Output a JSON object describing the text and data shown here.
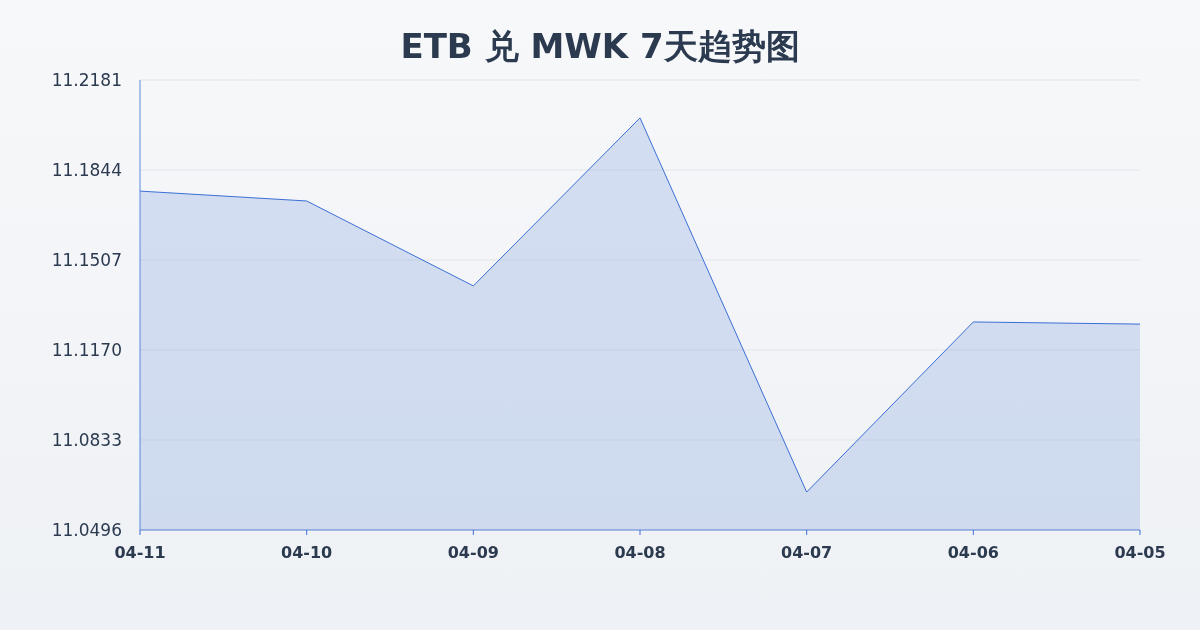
{
  "chart_data": {
    "type": "area",
    "title": "ETB 兑 MWK 7天趋势图",
    "categories": [
      "04-11",
      "04-10",
      "04-09",
      "04-08",
      "04-07",
      "04-06",
      "04-05"
    ],
    "series": [
      {
        "color": "#3b6fd4",
        "values": [
          11.1765,
          11.1728,
          11.141,
          11.2039,
          11.0638,
          11.1275,
          11.1267
        ]
      }
    ],
    "ylim": [
      11.0496,
      11.2181
    ],
    "yticks": [
      11.0496,
      11.0833,
      {
        "value": 11.117,
        "label": "11.1170"
      },
      11.1507,
      11.1844,
      11.2181
    ],
    "grid": "y"
  }
}
